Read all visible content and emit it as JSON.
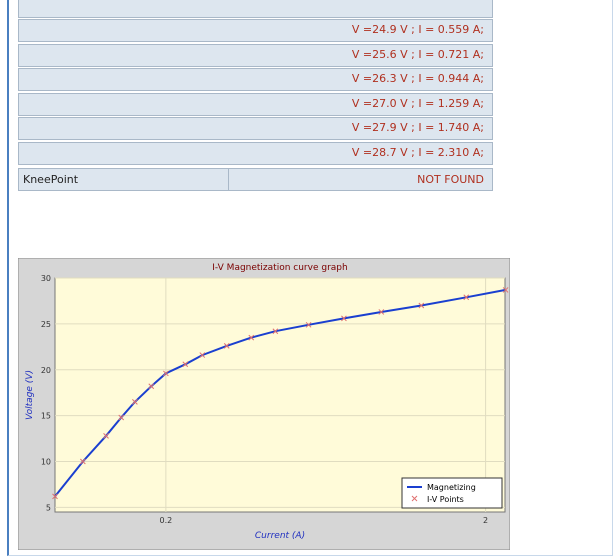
{
  "table": {
    "rows": [
      "V =24.9 V ; I = 0.559 A;",
      "V =25.6 V ; I = 0.721 A;",
      "V =26.3 V ; I = 0.944 A;",
      "V =27.0 V ; I = 1.259 A;",
      "V =27.9 V ; I = 1.740 A;",
      "V =28.7 V ; I = 2.310 A;"
    ],
    "knee_label": "KneePoint",
    "knee_value": "NOT FOUND"
  },
  "chart_data": {
    "type": "line",
    "title": "I-V Magnetization curve graph",
    "x_label": "Current (A)",
    "y_label": "Voltage (V)",
    "x": [
      0.09,
      0.11,
      0.13,
      0.145,
      0.16,
      0.18,
      0.2,
      0.23,
      0.26,
      0.31,
      0.37,
      0.44,
      0.559,
      0.721,
      0.944,
      1.259,
      1.74,
      2.31
    ],
    "series": [
      {
        "name": "Magnetizing",
        "color": "#1a3fd0",
        "values": [
          6.2,
          10,
          12.8,
          14.8,
          16.5,
          18.2,
          19.6,
          20.6,
          21.6,
          22.6,
          23.5,
          24.2,
          24.9,
          25.6,
          26.3,
          27.0,
          27.9,
          28.7
        ]
      },
      {
        "name": "I-V Points",
        "color": "#e07070",
        "values": [
          6.2,
          10,
          12.8,
          14.8,
          16.5,
          18.2,
          19.6,
          20.6,
          21.6,
          22.6,
          23.5,
          24.2,
          24.9,
          25.6,
          26.3,
          27.0,
          27.9,
          28.7
        ]
      }
    ],
    "xscale": "log",
    "xlim": [
      0.09,
      2.3
    ],
    "xticks": [
      0.2,
      2
    ],
    "ylim": [
      4.5,
      30
    ],
    "yticks": [
      5,
      10,
      15,
      20,
      25,
      30
    ],
    "grid": true,
    "legend": "lower right"
  }
}
